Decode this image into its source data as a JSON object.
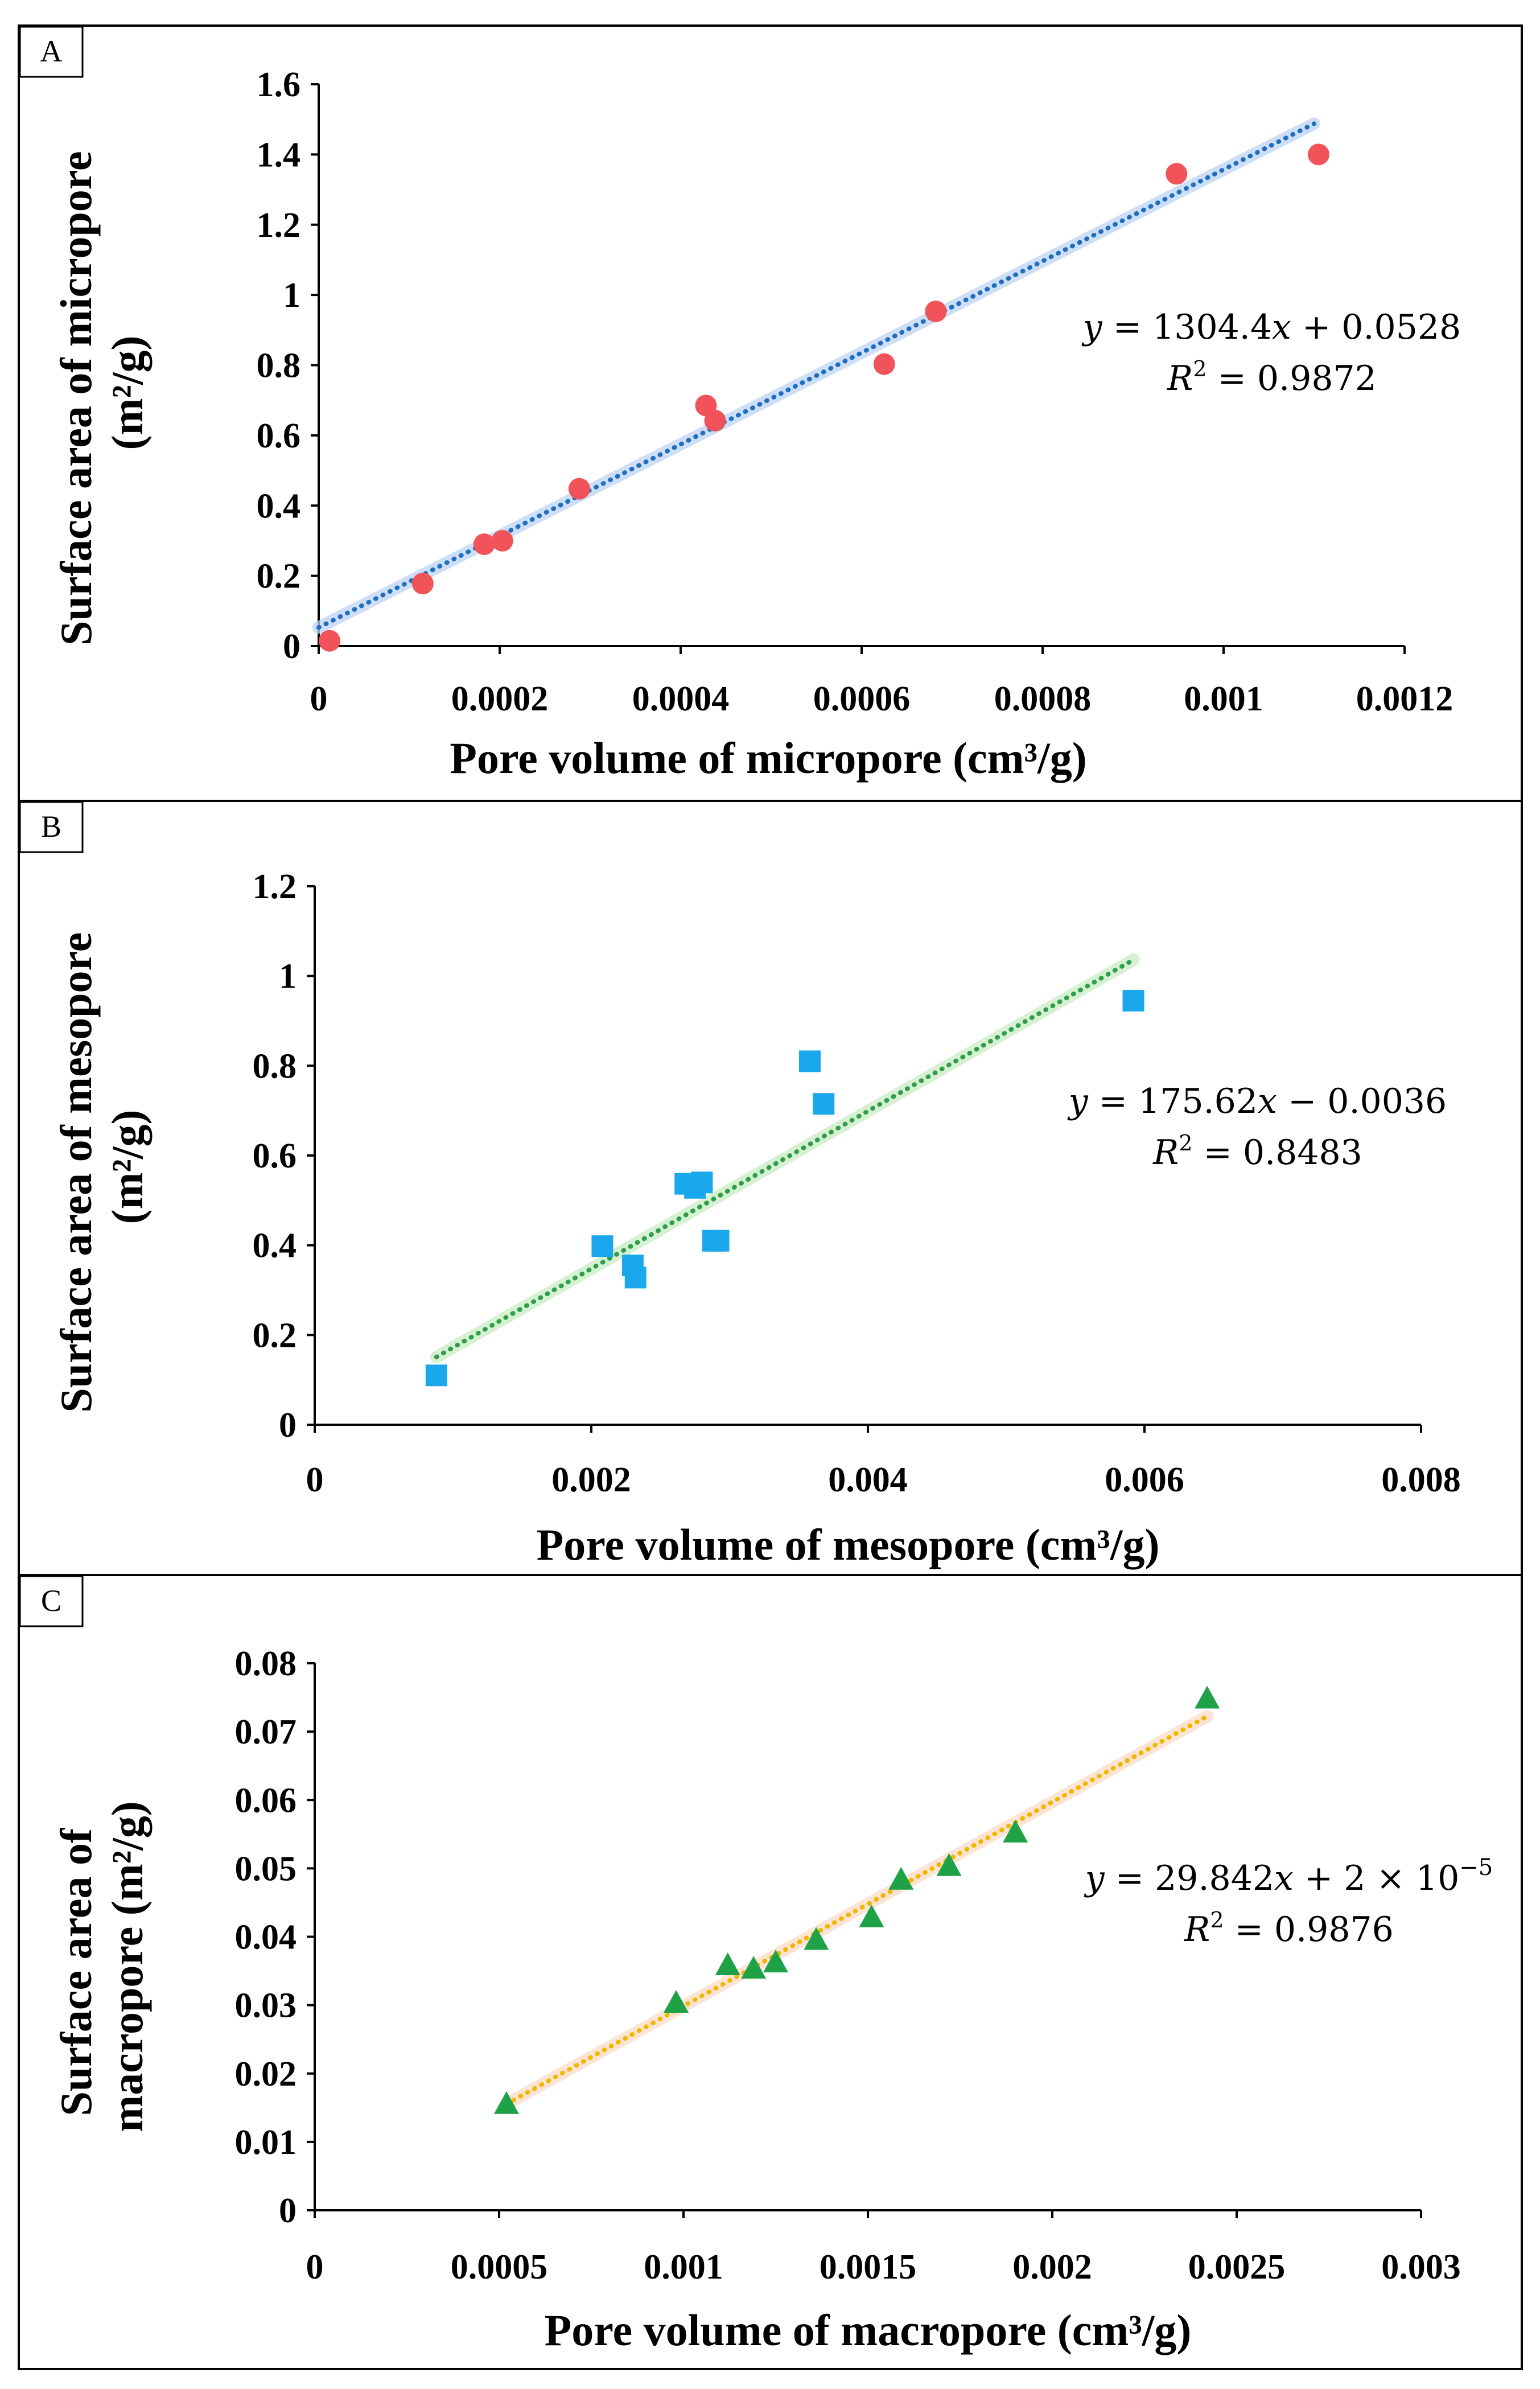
{
  "chart_data": [
    {
      "panel": "A",
      "type": "scatter",
      "xlabel": "Pore volume of micropore (cm³/g)",
      "ylabel_lines": [
        "Surface area of micropore",
        "(m²/g)"
      ],
      "xlim": [
        0,
        0.0012
      ],
      "ylim": [
        0,
        1.6
      ],
      "xticks": [
        0,
        0.0002,
        0.0004,
        0.0006,
        0.0008,
        0.001,
        0.0012
      ],
      "xtick_labels": [
        "0",
        "0.0002",
        "0.0004",
        "0.0006",
        "0.0008",
        "0.001",
        "0.0012"
      ],
      "yticks": [
        0,
        0.2,
        0.4,
        0.6,
        0.8,
        1,
        1.2,
        1.4,
        1.6
      ],
      "ytick_labels": [
        "0",
        "0.2",
        "0.4",
        "0.6",
        "0.8",
        "1",
        "1.2",
        "1.4",
        "1.6"
      ],
      "marker": "circle",
      "marker_color": "#F0535A",
      "trend_color": "#1F6FC0",
      "trend_glow": "#BFD4F5",
      "points": [
        [
          1.2e-05,
          0.015
        ],
        [
          0.000115,
          0.178
        ],
        [
          0.000183,
          0.29
        ],
        [
          0.000203,
          0.3
        ],
        [
          0.000288,
          0.448
        ],
        [
          0.000428,
          0.685
        ],
        [
          0.000438,
          0.642
        ],
        [
          0.000625,
          0.803
        ],
        [
          0.000682,
          0.953
        ],
        [
          0.000948,
          1.345
        ],
        [
          0.001105,
          1.4
        ]
      ],
      "trendline": {
        "slope": 1304.4,
        "intercept": 0.0528,
        "x_range": [
          0,
          0.0011
        ]
      },
      "equation_parts": [
        "y",
        " = 1304.4",
        "x",
        " + 0.0528"
      ],
      "r2_parts": [
        "R",
        "2",
        " = 0.9872"
      ]
    },
    {
      "panel": "B",
      "type": "scatter",
      "xlabel": "Pore volume of mesopore (cm³/g)",
      "ylabel_lines": [
        "Surface area of mesopore",
        "(m²/g)"
      ],
      "xlim": [
        0,
        0.008
      ],
      "ylim": [
        0,
        1.2
      ],
      "xticks": [
        0,
        0.002,
        0.004,
        0.006,
        0.008
      ],
      "xtick_labels": [
        "0",
        "0.002",
        "0.004",
        "0.006",
        "0.008"
      ],
      "yticks": [
        0,
        0.2,
        0.4,
        0.6,
        0.8,
        1,
        1.2
      ],
      "ytick_labels": [
        "0",
        "0.2",
        "0.4",
        "0.6",
        "0.8",
        "1",
        "1.2"
      ],
      "marker": "square",
      "marker_color": "#1AA7EC",
      "trend_color": "#2E9E48",
      "trend_glow": "#C9EBC4",
      "points": [
        [
          0.00088,
          0.11
        ],
        [
          0.00208,
          0.398
        ],
        [
          0.0023,
          0.355
        ],
        [
          0.00232,
          0.328
        ],
        [
          0.00268,
          0.537
        ],
        [
          0.00275,
          0.528
        ],
        [
          0.0028,
          0.54
        ],
        [
          0.00288,
          0.41
        ],
        [
          0.00292,
          0.41
        ],
        [
          0.00358,
          0.81
        ],
        [
          0.00368,
          0.715
        ],
        [
          0.00592,
          0.945
        ]
      ],
      "trendline": {
        "slope": 175.62,
        "intercept": -0.0036,
        "x_range": [
          0.00088,
          0.00592
        ]
      },
      "equation_parts": [
        "y",
        " = 175.62",
        "x",
        " − 0.0036"
      ],
      "r2_parts": [
        "R",
        "2",
        " = 0.8483"
      ]
    },
    {
      "panel": "C",
      "type": "scatter",
      "xlabel": "Pore volume of macropore (cm³/g)",
      "ylabel_lines": [
        "Surface area of",
        "macropore (m²/g)"
      ],
      "xlim": [
        0,
        0.003
      ],
      "ylim": [
        0,
        0.08
      ],
      "xticks": [
        0,
        0.0005,
        0.001,
        0.0015,
        0.002,
        0.0025,
        0.003
      ],
      "xtick_labels": [
        "0",
        "0.0005",
        "0.001",
        "0.0015",
        "0.002",
        "0.0025",
        "0.003"
      ],
      "yticks": [
        0,
        0.01,
        0.02,
        0.03,
        0.04,
        0.05,
        0.06,
        0.07,
        0.08
      ],
      "ytick_labels": [
        "0",
        "0.01",
        "0.02",
        "0.03",
        "0.04",
        "0.05",
        "0.06",
        "0.07",
        "0.08"
      ],
      "marker": "triangle",
      "marker_color": "#1FA247",
      "trend_color": "#F2B800",
      "trend_glow": "#FBDCC8",
      "points": [
        [
          0.00052,
          0.0155
        ],
        [
          0.00098,
          0.0303
        ],
        [
          0.00112,
          0.0358
        ],
        [
          0.00119,
          0.0353
        ],
        [
          0.00125,
          0.0362
        ],
        [
          0.00136,
          0.0395
        ],
        [
          0.00151,
          0.0428
        ],
        [
          0.00159,
          0.0483
        ],
        [
          0.00172,
          0.0503
        ],
        [
          0.0019,
          0.0552
        ],
        [
          0.00242,
          0.0748
        ]
      ],
      "trendline": {
        "slope": 29.842,
        "intercept": 2e-05,
        "x_range": [
          0.00052,
          0.00242
        ]
      },
      "equation_parts": [
        "y",
        " = 29.842",
        "x",
        " + 2 × 10",
        "−5"
      ],
      "r2_parts": [
        "R",
        "2",
        " = 0.9876"
      ]
    }
  ]
}
